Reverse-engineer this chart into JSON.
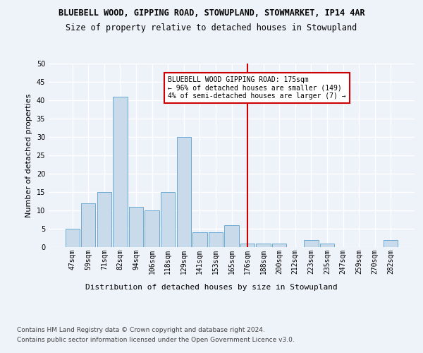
{
  "title_line1": "BLUEBELL WOOD, GIPPING ROAD, STOWUPLAND, STOWMARKET, IP14 4AR",
  "title_line2": "Size of property relative to detached houses in Stowupland",
  "xlabel": "Distribution of detached houses by size in Stowupland",
  "ylabel": "Number of detached properties",
  "categories": [
    "47sqm",
    "59sqm",
    "71sqm",
    "82sqm",
    "94sqm",
    "106sqm",
    "118sqm",
    "129sqm",
    "141sqm",
    "153sqm",
    "165sqm",
    "176sqm",
    "188sqm",
    "200sqm",
    "212sqm",
    "223sqm",
    "235sqm",
    "247sqm",
    "259sqm",
    "270sqm",
    "282sqm"
  ],
  "values": [
    5,
    12,
    15,
    41,
    11,
    10,
    15,
    30,
    4,
    4,
    6,
    1,
    1,
    1,
    0,
    2,
    1,
    0,
    0,
    0,
    2
  ],
  "bar_color": "#c9daea",
  "bar_edge_color": "#6aaad4",
  "highlight_index": 11,
  "highlight_line_color": "#cc0000",
  "annotation_text": "BLUEBELL WOOD GIPPING ROAD: 175sqm\n← 96% of detached houses are smaller (149)\n4% of semi-detached houses are larger (7) →",
  "annotation_box_color": "#ffffff",
  "annotation_box_edge": "#cc0000",
  "ylim": [
    0,
    50
  ],
  "yticks": [
    0,
    5,
    10,
    15,
    20,
    25,
    30,
    35,
    40,
    45,
    50
  ],
  "footer_line1": "Contains HM Land Registry data © Crown copyright and database right 2024.",
  "footer_line2": "Contains public sector information licensed under the Open Government Licence v3.0.",
  "bg_color": "#eef2f9",
  "plot_bg_color": "#eef2f9",
  "grid_color": "#ffffff",
  "title_fontsize": 8.5,
  "subtitle_fontsize": 8.5,
  "axis_label_fontsize": 8,
  "tick_fontsize": 7,
  "footer_fontsize": 6.5
}
